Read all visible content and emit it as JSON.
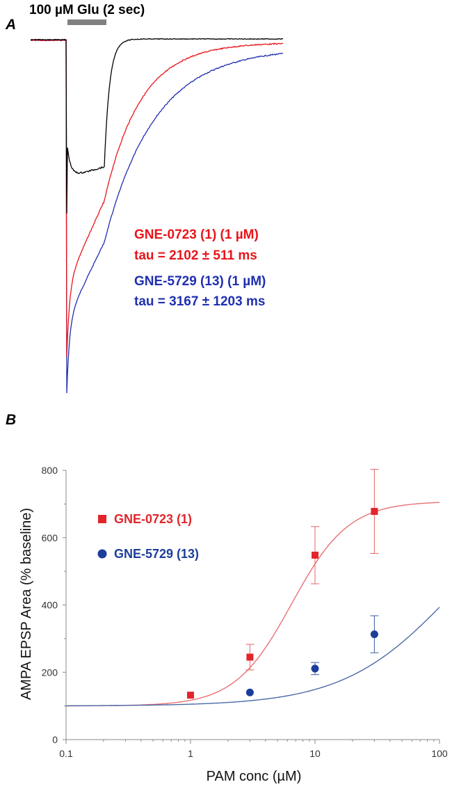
{
  "panel_a": {
    "letter": "A",
    "stimulus_label": "100 µM Glu (2 sec)",
    "annotations": [
      {
        "text": "GNE-0723 (1) (1 µM)",
        "color": "#e8151b"
      },
      {
        "text": "tau = 2102 ± 511 ms",
        "color": "#e8151b"
      },
      {
        "text": "GNE-5729 (13) (1 µM)",
        "color": "#1f2fb0"
      },
      {
        "text": "tau = 3167 ± 1203 ms",
        "color": "#1f2fb0"
      }
    ],
    "trace_colors": {
      "control": "#000000",
      "gne0723": "#e8151b",
      "gne5729": "#1f2fb0"
    },
    "stimulus_bar_color": "#808080"
  },
  "panel_b": {
    "letter": "B",
    "xlabel": "PAM conc (µM)",
    "ylabel": "AMPA EPSP Area (% baseline)"
  },
  "chart_data": [
    {
      "type": "line",
      "panel": "A",
      "title": "",
      "xlabel": "",
      "ylabel": "",
      "stimulus": {
        "label": "100 µM Glu (2 sec)",
        "duration_s": 2
      },
      "series": [
        {
          "name": "",
          "color": "#000000"
        },
        {
          "name": "GNE-0723 (1) (1 µM)",
          "tau": "2102 ± 511 ms",
          "color": "#e8151b"
        },
        {
          "name": "GNE-5729 (13) (1 µM)",
          "tau": "3167 ± 1203 ms",
          "color": "#1f2fb0"
        }
      ]
    },
    {
      "type": "scatter",
      "panel": "B",
      "title": "",
      "xlabel": "PAM conc (µM)",
      "ylabel": "AMPA EPSP Area (% baseline)",
      "xscale": "log",
      "xlim": [
        0.1,
        100
      ],
      "ylim": [
        0,
        800
      ],
      "x_ticks": [
        "0.1",
        "1",
        "10",
        "100"
      ],
      "y_ticks": [
        "0",
        "200",
        "400",
        "600",
        "800"
      ],
      "grid": false,
      "legend_position": "upper-left",
      "series": [
        {
          "name": "GNE-0723 (1)",
          "marker": "square",
          "color": "#e3242b",
          "line_color": "#e97072",
          "x": [
            1,
            3,
            10,
            30
          ],
          "y": [
            132,
            245,
            548,
            678
          ],
          "err": [
            0,
            38,
            85,
            125
          ],
          "fit": {
            "bottom": 100,
            "top": 708,
            "ec50": 6.5,
            "hill": 1.9
          }
        },
        {
          "name": "GNE-5729 (13)",
          "marker": "circle",
          "color": "#1c3d99",
          "line_color": "#4a6aa8",
          "x": [
            3,
            10,
            30
          ],
          "y": [
            140,
            211,
            313
          ],
          "err": [
            0,
            18,
            55
          ],
          "fit": {
            "bottom": 100,
            "top": 760,
            "ec50": 125,
            "hill": 1.0
          }
        }
      ]
    }
  ]
}
